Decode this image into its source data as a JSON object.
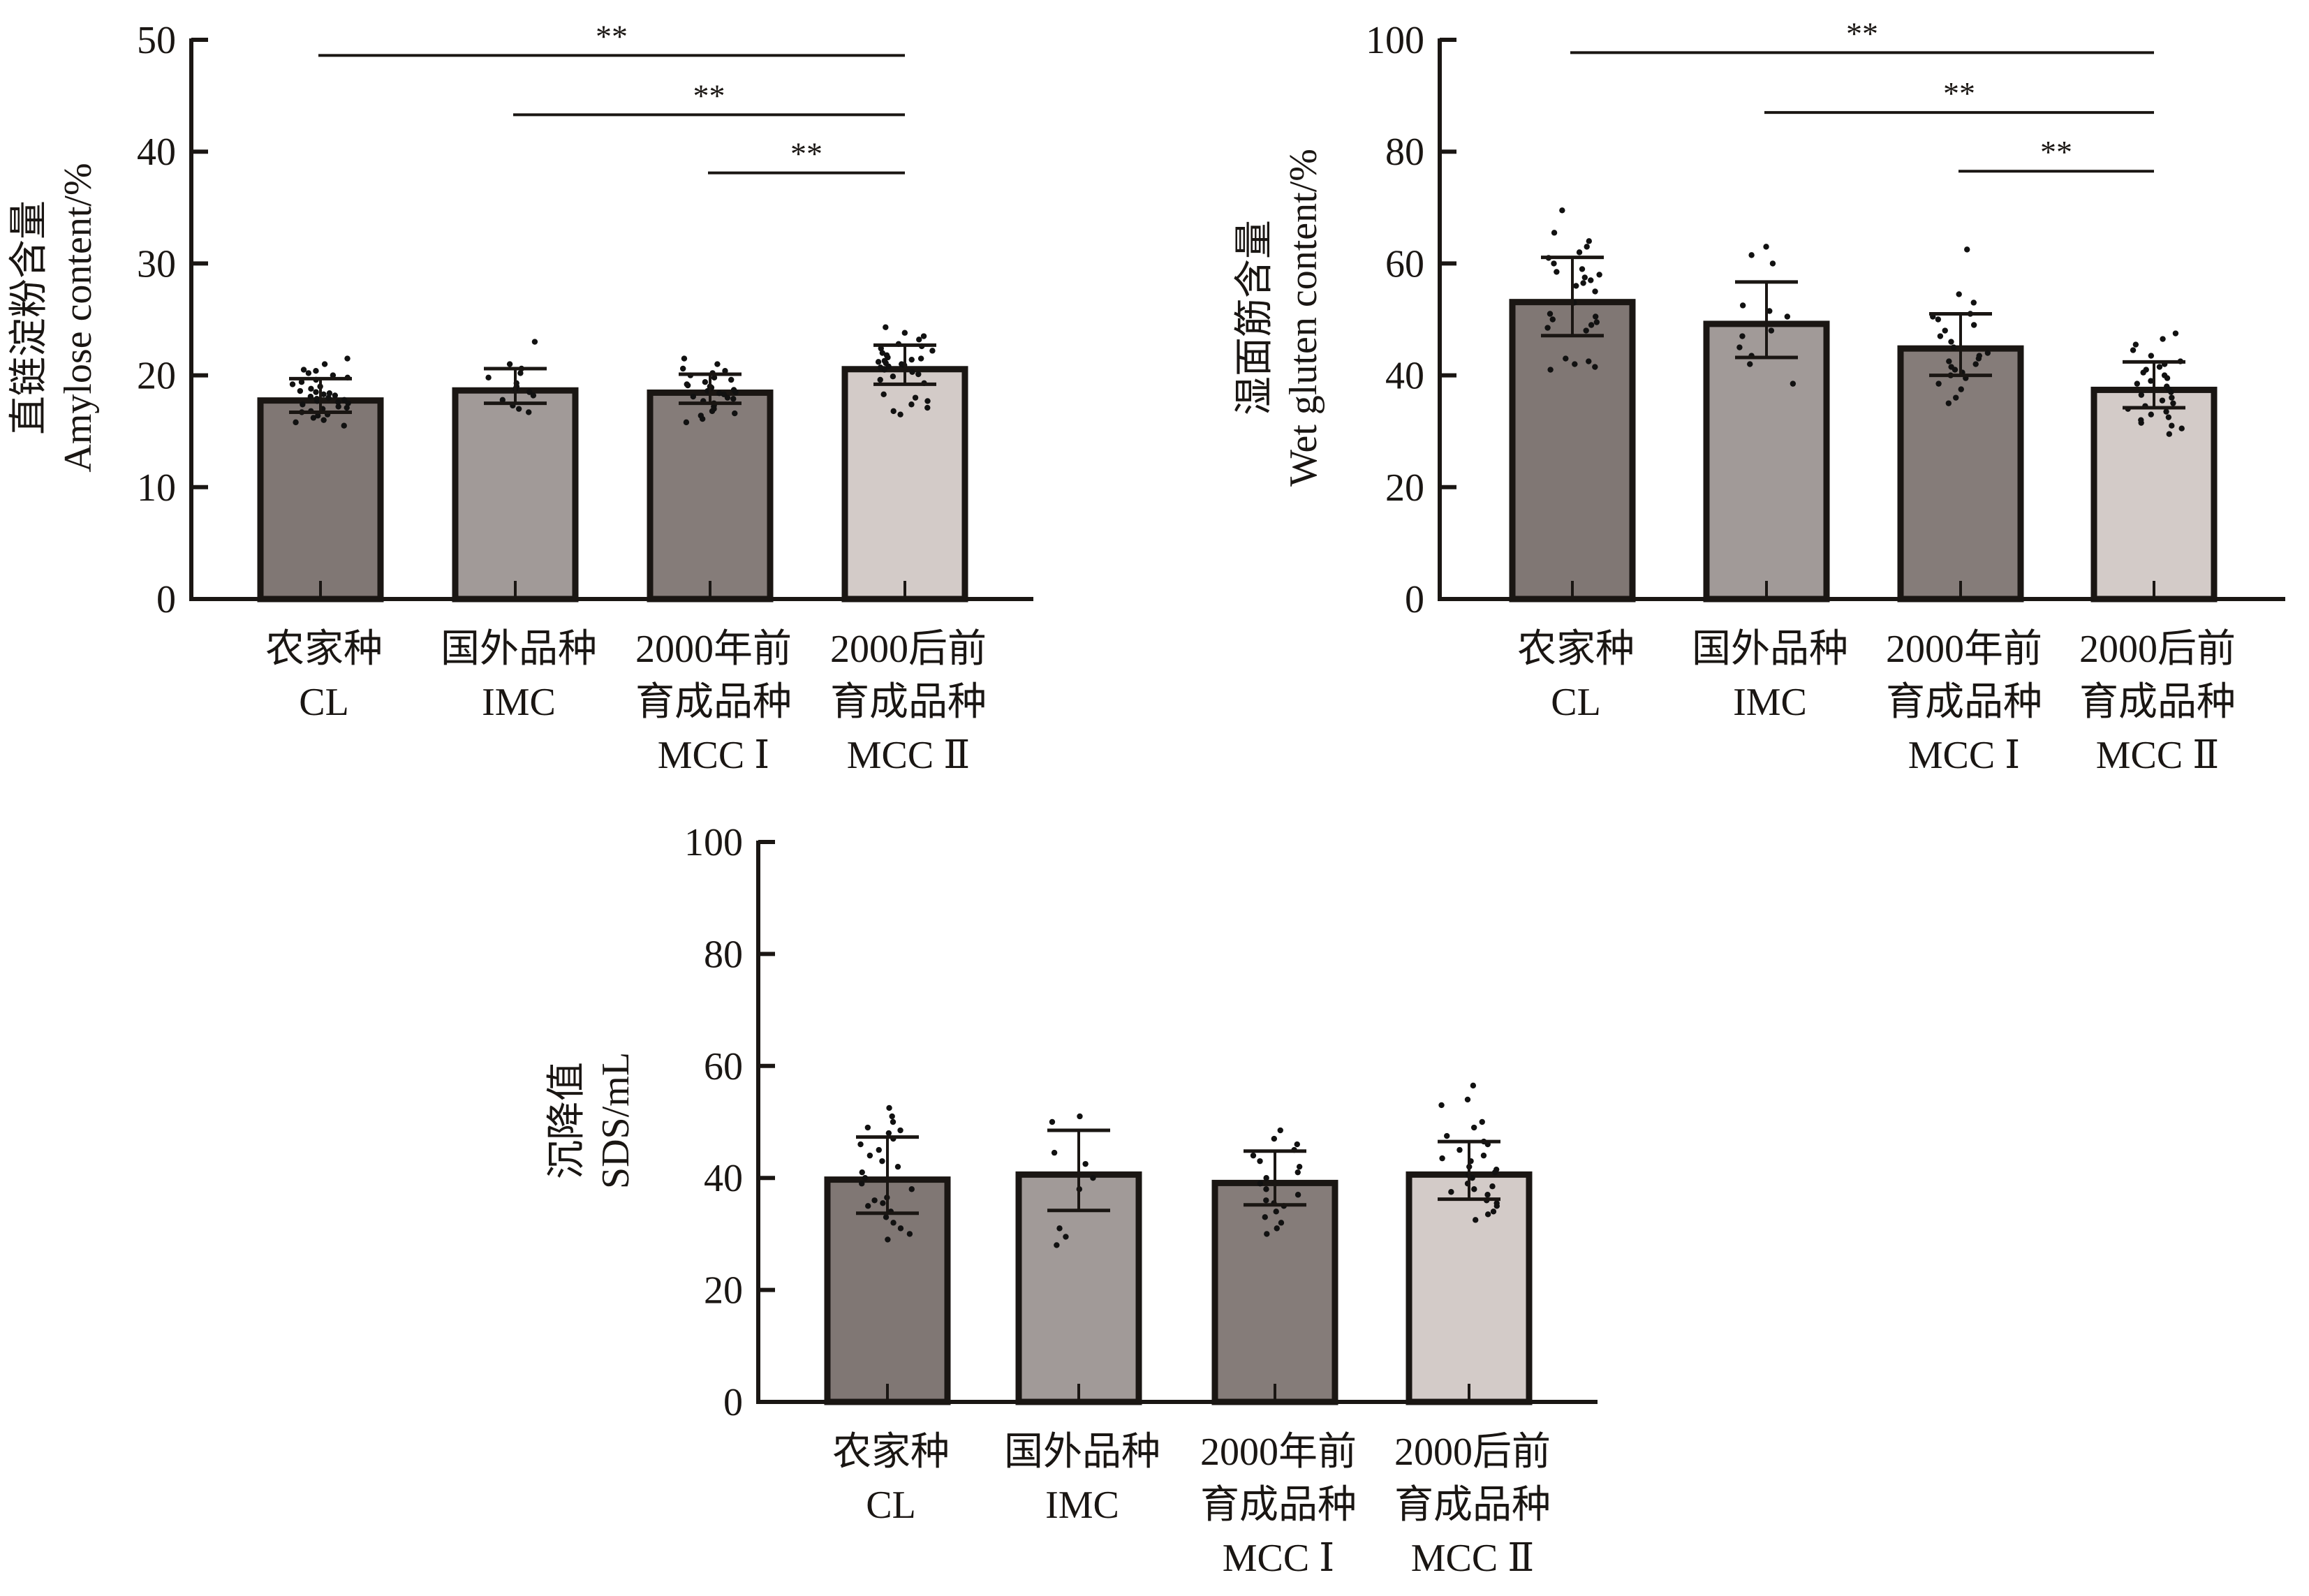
{
  "figure": {
    "categories": [
      {
        "line1": "农家种",
        "line2": "CL",
        "line3": ""
      },
      {
        "line1": "国外品种",
        "line2": "IMC",
        "line3": ""
      },
      {
        "line1": "2000年前",
        "line2": "育成品种",
        "line3": "MCC Ⅰ"
      },
      {
        "line1": "2000后前",
        "line2": "育成品种",
        "line3": "MCC Ⅱ"
      }
    ],
    "bar_colors": [
      "#807774",
      "#a19a98",
      "#857c79",
      "#d3cbc8"
    ],
    "outline_color": "#1a1613"
  },
  "chart_data": [
    {
      "id": "amylose",
      "type": "bar",
      "title": "",
      "ylabel_cn": "直链淀粉含量",
      "ylabel_en": "Amylose content/%",
      "xlabel": "",
      "categories": [
        "CL",
        "IMC",
        "MCC Ⅰ",
        "MCC Ⅱ"
      ],
      "ylim": [
        0,
        50
      ],
      "yticks": [
        0,
        10,
        20,
        30,
        40,
        50
      ],
      "values": [
        18.0,
        18.9,
        18.7,
        20.8
      ],
      "error_upper": [
        19.7,
        20.6,
        20.1,
        22.7
      ],
      "error_lower": [
        16.7,
        17.5,
        17.5,
        19.2
      ],
      "points": [
        [
          15.5,
          15.8,
          16.0,
          16.2,
          16.4,
          16.5,
          16.7,
          16.8,
          17.0,
          17.1,
          17.2,
          17.4,
          17.5,
          17.6,
          17.7,
          17.8,
          17.9,
          18.0,
          18.1,
          18.2,
          18.3,
          18.4,
          18.5,
          18.6,
          18.8,
          19.0,
          19.2,
          19.4,
          19.6,
          19.8,
          20.0,
          20.2,
          20.4,
          20.5,
          21.0,
          21.5
        ],
        [
          16.7,
          17.0,
          17.3,
          17.8,
          18.2,
          18.5,
          18.8,
          19.0,
          19.3,
          19.8,
          20.2,
          20.6,
          21.0,
          23.0
        ],
        [
          15.8,
          16.1,
          16.4,
          16.6,
          16.8,
          17.0,
          17.2,
          17.4,
          17.5,
          17.7,
          17.9,
          18.0,
          18.1,
          18.3,
          18.4,
          18.5,
          18.6,
          18.7,
          18.8,
          18.9,
          19.0,
          19.1,
          19.2,
          19.4,
          19.6,
          19.8,
          20.0,
          20.2,
          20.4,
          20.6,
          21.0,
          21.5
        ],
        [
          16.5,
          16.8,
          17.1,
          17.4,
          17.7,
          18.0,
          18.3,
          19.3,
          19.6,
          19.9,
          20.1,
          20.3,
          20.5,
          20.7,
          20.8,
          20.9,
          21.0,
          21.1,
          21.2,
          21.3,
          21.4,
          21.5,
          21.6,
          21.8,
          22.0,
          22.2,
          22.4,
          22.6,
          22.8,
          23.2,
          23.5,
          23.8,
          24.3
        ]
      ],
      "significance": [
        {
          "from": 0,
          "to": 3,
          "label": "**",
          "y": 48.6
        },
        {
          "from": 1,
          "to": 3,
          "label": "**",
          "y": 43.3
        },
        {
          "from": 2,
          "to": 3,
          "label": "**",
          "y": 38.1
        }
      ]
    },
    {
      "id": "gluten",
      "type": "bar",
      "title": "",
      "ylabel_cn": "湿面筋含量",
      "ylabel_en": "Wet gluten content/%",
      "xlabel": "",
      "categories": [
        "CL",
        "IMC",
        "MCC Ⅰ",
        "MCC Ⅱ"
      ],
      "ylim": [
        0,
        100
      ],
      "yticks": [
        0,
        20,
        40,
        60,
        80,
        100
      ],
      "values": [
        53.6,
        49.7,
        45.3,
        37.9
      ],
      "error_upper": [
        61.1,
        56.7,
        51.0,
        42.4
      ],
      "error_lower": [
        47.1,
        43.2,
        40.0,
        34.2
      ],
      "points": [
        [
          41.0,
          41.5,
          42.0,
          42.5,
          43.0,
          48.0,
          48.5,
          49.0,
          49.5,
          50.0,
          50.5,
          51.0,
          53.0,
          55.0,
          56.0,
          56.5,
          57.0,
          57.5,
          58.0,
          58.5,
          59.0,
          60.0,
          61.0,
          62.0,
          63.0,
          64.0,
          65.5,
          69.5
        ],
        [
          38.5,
          42.0,
          43.5,
          45.0,
          47.0,
          48.0,
          50.5,
          51.5,
          52.5,
          60.0,
          61.5,
          63.0
        ],
        [
          35.0,
          36.0,
          37.5,
          38.5,
          39.5,
          40.0,
          40.5,
          41.0,
          41.5,
          42.0,
          42.5,
          43.0,
          43.5,
          44.0,
          45.0,
          46.0,
          47.0,
          48.0,
          49.0,
          50.0,
          50.5,
          51.0,
          53.0,
          54.5,
          62.5
        ],
        [
          29.5,
          30.5,
          31.0,
          31.5,
          32.0,
          32.5,
          33.0,
          33.5,
          34.0,
          34.5,
          35.0,
          35.5,
          36.0,
          36.5,
          37.0,
          37.5,
          38.0,
          38.5,
          39.0,
          39.5,
          40.0,
          40.5,
          41.0,
          41.5,
          42.0,
          42.5,
          43.5,
          44.5,
          45.5,
          46.5,
          47.5
        ]
      ],
      "significance": [
        {
          "from": 0,
          "to": 3,
          "label": "**",
          "y": 97.7
        },
        {
          "from": 1,
          "to": 3,
          "label": "**",
          "y": 87.0
        },
        {
          "from": 2,
          "to": 3,
          "label": "**",
          "y": 76.5
        }
      ]
    },
    {
      "id": "sds",
      "type": "bar",
      "title": "",
      "ylabel_cn": "沉降值",
      "ylabel_en": "SDS/mL",
      "xlabel": "",
      "categories": [
        "CL",
        "IMC",
        "MCC Ⅰ",
        "MCC Ⅱ"
      ],
      "ylim": [
        0,
        100
      ],
      "yticks": [
        0,
        20,
        40,
        60,
        80,
        100
      ],
      "values": [
        40.2,
        41.1,
        39.6,
        41.1
      ],
      "error_upper": [
        47.3,
        48.5,
        44.8,
        46.5
      ],
      "error_lower": [
        33.7,
        34.2,
        35.2,
        36.2
      ],
      "points": [
        [
          29.0,
          30.0,
          31.0,
          32.0,
          33.0,
          34.0,
          35.0,
          35.5,
          36.0,
          36.5,
          38.0,
          39.0,
          40.0,
          41.0,
          42.0,
          43.0,
          44.0,
          45.0,
          46.0,
          47.0,
          48.0,
          48.5,
          49.0,
          50.0,
          51.0,
          52.5
        ],
        [
          28.0,
          29.5,
          31.0,
          38.0,
          40.0,
          42.5,
          44.5,
          50.0,
          51.0
        ],
        [
          30.0,
          31.0,
          32.0,
          33.0,
          34.0,
          35.0,
          35.5,
          36.0,
          37.0,
          38.0,
          39.0,
          40.0,
          41.0,
          42.0,
          43.0,
          44.0,
          45.0,
          46.0,
          47.0,
          48.5
        ],
        [
          32.5,
          33.5,
          34.0,
          35.0,
          35.5,
          36.0,
          37.0,
          37.5,
          38.0,
          38.5,
          39.0,
          40.0,
          40.5,
          41.0,
          41.5,
          42.0,
          43.0,
          43.5,
          44.0,
          45.0,
          46.0,
          46.5,
          47.5,
          49.0,
          50.0,
          53.0,
          54.0,
          56.5
        ]
      ],
      "significance": []
    }
  ]
}
